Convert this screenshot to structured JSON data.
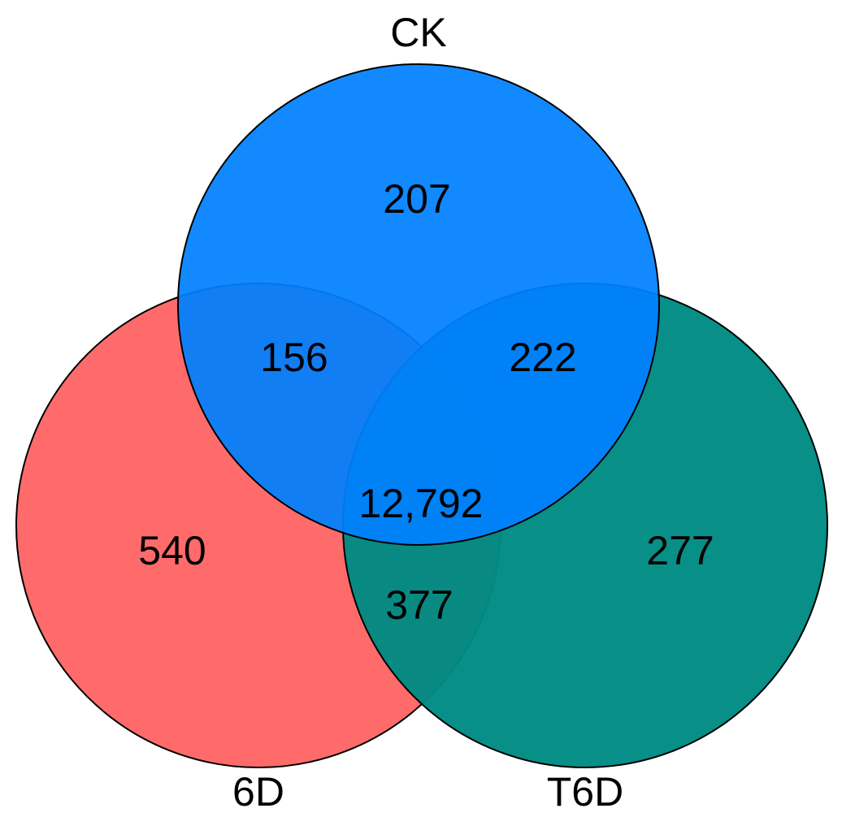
{
  "sets": {
    "ck": {
      "label": "CK",
      "color": "#0080ff"
    },
    "sixd": {
      "label": "6D",
      "color": "#ff6b6b"
    },
    "t6d": {
      "label": "T6D",
      "color": "#008b83"
    }
  },
  "regions": {
    "ck_only": "207",
    "ck_6d": "156",
    "ck_t6d": "222",
    "all": "12,792",
    "sixd_only": "540",
    "t6d_only": "277",
    "sixd_t6d": "377"
  }
}
